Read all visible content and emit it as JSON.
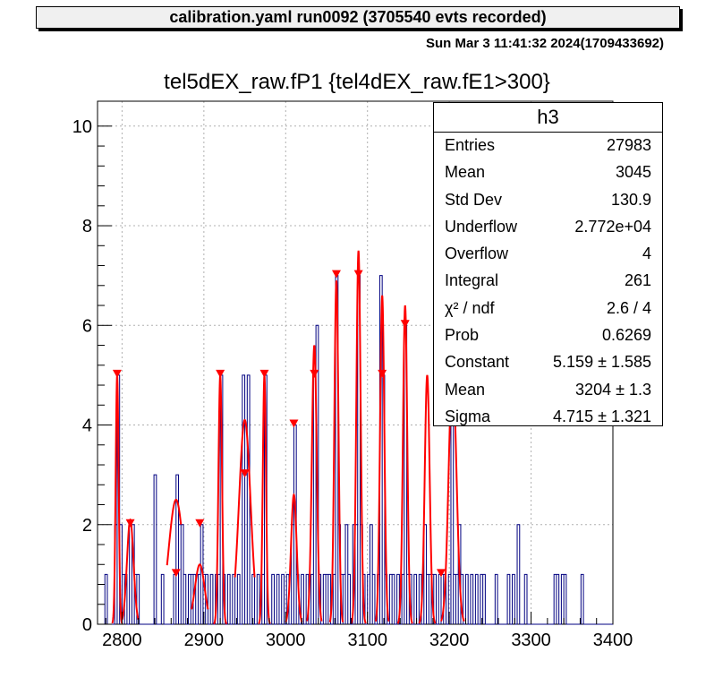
{
  "banner": "calibration.yaml  run0092 (3705540 evts recorded)",
  "datestamp": "Sun Mar  3 11:41:32 2024(1709433692)",
  "stats_box": {
    "name": "h3",
    "rows": [
      {
        "label": "Entries",
        "value": "27983"
      },
      {
        "label": "Mean",
        "value": "3045"
      },
      {
        "label": "Std Dev",
        "value": "130.9"
      },
      {
        "label": "Underflow",
        "value": "2.772e+04"
      },
      {
        "label": "Overflow",
        "value": "4"
      },
      {
        "label": "Integral",
        "value": "261"
      },
      {
        "label": "χ² / ndf",
        "value": "2.6 / 4"
      },
      {
        "label": "Prob",
        "value": "0.6269"
      },
      {
        "label": "Constant",
        "value": "5.159 ± 1.585"
      },
      {
        "label": "Mean",
        "value": "3204 ± 1.3"
      },
      {
        "label": "Sigma",
        "value": "4.715 ± 1.321"
      }
    ]
  },
  "colors": {
    "histogram": "#000080",
    "fit": "#ff0000",
    "grid": "#b0b0b0"
  },
  "chart_data": {
    "type": "bar",
    "title": "tel5dEX_raw.fP1 {tel4dEX_raw.fE1>300}",
    "xlabel": "",
    "ylabel": "",
    "xlim": [
      2770,
      3400
    ],
    "ylim": [
      0,
      10.5
    ],
    "grid": true,
    "bin_width": 3,
    "x_ticks": [
      2800,
      2900,
      3000,
      3100,
      3200,
      3300,
      3400
    ],
    "y_ticks": [
      0,
      2,
      4,
      6,
      8,
      10
    ],
    "bins": [
      [
        2779,
        1
      ],
      [
        2791,
        2
      ],
      [
        2794,
        5
      ],
      [
        2797,
        2
      ],
      [
        2800,
        1
      ],
      [
        2803,
        1
      ],
      [
        2809,
        2
      ],
      [
        2812,
        2
      ],
      [
        2815,
        1
      ],
      [
        2818,
        1
      ],
      [
        2839,
        3
      ],
      [
        2848,
        1
      ],
      [
        2863,
        1
      ],
      [
        2866,
        3
      ],
      [
        2869,
        2
      ],
      [
        2872,
        2
      ],
      [
        2875,
        1
      ],
      [
        2881,
        1
      ],
      [
        2884,
        1
      ],
      [
        2887,
        1
      ],
      [
        2893,
        1
      ],
      [
        2896,
        2
      ],
      [
        2899,
        1
      ],
      [
        2902,
        1
      ],
      [
        2908,
        1
      ],
      [
        2914,
        1
      ],
      [
        2917,
        1
      ],
      [
        2920,
        5
      ],
      [
        2923,
        1
      ],
      [
        2929,
        1
      ],
      [
        2935,
        1
      ],
      [
        2941,
        1
      ],
      [
        2947,
        5
      ],
      [
        2950,
        3
      ],
      [
        2953,
        5
      ],
      [
        2959,
        1
      ],
      [
        2965,
        1
      ],
      [
        2971,
        1
      ],
      [
        2974,
        5
      ],
      [
        2983,
        1
      ],
      [
        2989,
        1
      ],
      [
        2995,
        1
      ],
      [
        3001,
        1
      ],
      [
        3007,
        2
      ],
      [
        3010,
        4
      ],
      [
        3013,
        1
      ],
      [
        3019,
        1
      ],
      [
        3025,
        1
      ],
      [
        3031,
        1
      ],
      [
        3034,
        5
      ],
      [
        3037,
        6
      ],
      [
        3040,
        1
      ],
      [
        3046,
        1
      ],
      [
        3049,
        1
      ],
      [
        3052,
        1
      ],
      [
        3058,
        1
      ],
      [
        3061,
        7
      ],
      [
        3064,
        2
      ],
      [
        3067,
        1
      ],
      [
        3070,
        1
      ],
      [
        3073,
        2
      ],
      [
        3076,
        1
      ],
      [
        3082,
        2
      ],
      [
        3085,
        2
      ],
      [
        3088,
        7
      ],
      [
        3091,
        2
      ],
      [
        3094,
        1
      ],
      [
        3100,
        1
      ],
      [
        3103,
        2
      ],
      [
        3106,
        1
      ],
      [
        3112,
        1
      ],
      [
        3115,
        7
      ],
      [
        3118,
        5
      ],
      [
        3121,
        1
      ],
      [
        3127,
        1
      ],
      [
        3130,
        1
      ],
      [
        3136,
        1
      ],
      [
        3142,
        1
      ],
      [
        3145,
        6
      ],
      [
        3148,
        1
      ],
      [
        3151,
        1
      ],
      [
        3157,
        1
      ],
      [
        3163,
        1
      ],
      [
        3169,
        2
      ],
      [
        3172,
        1
      ],
      [
        3175,
        1
      ],
      [
        3178,
        1
      ],
      [
        3181,
        1
      ],
      [
        3187,
        1
      ],
      [
        3190,
        1
      ],
      [
        3193,
        1
      ],
      [
        3199,
        1
      ],
      [
        3202,
        5
      ],
      [
        3205,
        1
      ],
      [
        3208,
        1
      ],
      [
        3211,
        2
      ],
      [
        3214,
        1
      ],
      [
        3220,
        1
      ],
      [
        3226,
        1
      ],
      [
        3232,
        1
      ],
      [
        3238,
        1
      ],
      [
        3241,
        1
      ],
      [
        3256,
        1
      ],
      [
        3271,
        1
      ],
      [
        3277,
        1
      ],
      [
        3283,
        2
      ],
      [
        3292,
        1
      ],
      [
        3328,
        1
      ],
      [
        3331,
        1
      ],
      [
        3337,
        1
      ],
      [
        3340,
        1
      ],
      [
        3361,
        1
      ]
    ],
    "fits": [
      {
        "mean": 2794,
        "sigma": 1.8,
        "amp": 5.0,
        "range": [
          2788,
          2800
        ]
      },
      {
        "mean": 2810,
        "sigma": 4.0,
        "amp": 2.1,
        "range": [
          2800,
          2820
        ]
      },
      {
        "mean": 2866,
        "sigma": 9.0,
        "amp": 2.5,
        "range": [
          2855,
          2872
        ]
      },
      {
        "mean": 2895,
        "sigma": 6.0,
        "amp": 1.2,
        "range": [
          2885,
          2905
        ]
      },
      {
        "mean": 2920,
        "sigma": 2.2,
        "amp": 5.0,
        "range": [
          2912,
          2928
        ]
      },
      {
        "mean": 2950,
        "sigma": 7.0,
        "amp": 4.1,
        "range": [
          2938,
          2962
        ]
      },
      {
        "mean": 2974,
        "sigma": 2.0,
        "amp": 5.0,
        "range": [
          2967,
          2981
        ]
      },
      {
        "mean": 3010,
        "sigma": 3.5,
        "amp": 2.6,
        "range": [
          3000,
          3020
        ]
      },
      {
        "mean": 3035,
        "sigma": 3.0,
        "amp": 5.6,
        "range": [
          3026,
          3044
        ]
      },
      {
        "mean": 3062,
        "sigma": 2.5,
        "amp": 6.9,
        "range": [
          3054,
          3070
        ]
      },
      {
        "mean": 3089,
        "sigma": 2.6,
        "amp": 7.5,
        "range": [
          3080,
          3098
        ]
      },
      {
        "mean": 3118,
        "sigma": 2.6,
        "amp": 6.6,
        "range": [
          3110,
          3126
        ]
      },
      {
        "mean": 3146,
        "sigma": 2.6,
        "amp": 6.4,
        "range": [
          3137,
          3155
        ]
      },
      {
        "mean": 3173,
        "sigma": 3.0,
        "amp": 5.0,
        "range": [
          3163,
          3183
        ]
      },
      {
        "mean": 3204,
        "sigma": 4.7,
        "amp": 5.16,
        "range": [
          3190,
          3218
        ]
      }
    ],
    "markers": [
      [
        2794,
        5.0
      ],
      [
        2810,
        2.0
      ],
      [
        2866,
        1.0
      ],
      [
        2895,
        2.0
      ],
      [
        2920,
        5.0
      ],
      [
        2950,
        3.0
      ],
      [
        2974,
        5.0
      ],
      [
        3010,
        4.0
      ],
      [
        3035,
        5.0
      ],
      [
        3062,
        7.0
      ],
      [
        3089,
        7.0
      ],
      [
        3118,
        5.0
      ],
      [
        3146,
        6.0
      ],
      [
        3190,
        1.0
      ],
      [
        3202,
        5.0
      ]
    ]
  }
}
